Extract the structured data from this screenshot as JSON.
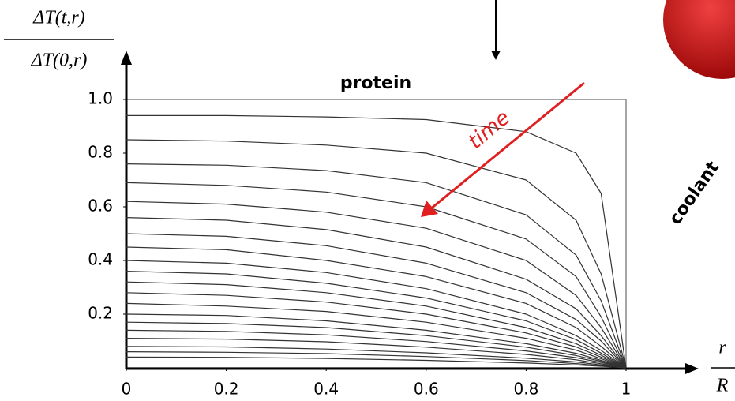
{
  "chart_data": {
    "type": "line",
    "ylabel": {
      "numerator": "ΔT(t,r)",
      "denominator": "ΔT(0,r)"
    },
    "xlabel": {
      "numerator": "r",
      "denominator": "R"
    },
    "annotations": {
      "region": "protein",
      "arrow": "time",
      "outside": "coolant"
    },
    "x": [
      0,
      0.2,
      0.4,
      0.6,
      0.8,
      0.9,
      0.95,
      1
    ],
    "series": [
      {
        "color": "#333333",
        "values": [
          0.94,
          0.94,
          0.935,
          0.925,
          0.88,
          0.8,
          0.65,
          0
        ]
      },
      {
        "color": "#333333",
        "values": [
          0.85,
          0.845,
          0.83,
          0.8,
          0.7,
          0.55,
          0.35,
          0
        ]
      },
      {
        "color": "#333333",
        "values": [
          0.76,
          0.755,
          0.735,
          0.69,
          0.57,
          0.42,
          0.25,
          0
        ]
      },
      {
        "color": "#333333",
        "values": [
          0.69,
          0.68,
          0.655,
          0.6,
          0.48,
          0.34,
          0.19,
          0
        ]
      },
      {
        "color": "#333333",
        "values": [
          0.62,
          0.61,
          0.58,
          0.52,
          0.4,
          0.27,
          0.15,
          0
        ]
      },
      {
        "color": "#333333",
        "values": [
          0.56,
          0.55,
          0.515,
          0.45,
          0.33,
          0.22,
          0.12,
          0
        ]
      },
      {
        "color": "#333333",
        "values": [
          0.5,
          0.49,
          0.455,
          0.39,
          0.28,
          0.18,
          0.1,
          0
        ]
      },
      {
        "color": "#333333",
        "values": [
          0.45,
          0.44,
          0.4,
          0.34,
          0.24,
          0.15,
          0.08,
          0
        ]
      },
      {
        "color": "#333333",
        "values": [
          0.4,
          0.39,
          0.355,
          0.295,
          0.2,
          0.12,
          0.065,
          0
        ]
      },
      {
        "color": "#333333",
        "values": [
          0.36,
          0.35,
          0.315,
          0.26,
          0.175,
          0.105,
          0.055,
          0
        ]
      },
      {
        "color": "#333333",
        "values": [
          0.32,
          0.31,
          0.28,
          0.23,
          0.15,
          0.09,
          0.047,
          0
        ]
      },
      {
        "color": "#333333",
        "values": [
          0.28,
          0.27,
          0.245,
          0.2,
          0.13,
          0.078,
          0.04,
          0
        ]
      },
      {
        "color": "#333333",
        "values": [
          0.24,
          0.23,
          0.21,
          0.17,
          0.11,
          0.066,
          0.034,
          0
        ]
      },
      {
        "color": "#333333",
        "values": [
          0.2,
          0.195,
          0.175,
          0.14,
          0.09,
          0.054,
          0.028,
          0
        ]
      },
      {
        "color": "#333333",
        "values": [
          0.17,
          0.165,
          0.15,
          0.12,
          0.077,
          0.046,
          0.024,
          0
        ]
      },
      {
        "color": "#333333",
        "values": [
          0.14,
          0.136,
          0.123,
          0.098,
          0.063,
          0.038,
          0.02,
          0
        ]
      },
      {
        "color": "#333333",
        "values": [
          0.11,
          0.107,
          0.097,
          0.077,
          0.05,
          0.03,
          0.015,
          0
        ]
      },
      {
        "color": "#333333",
        "values": [
          0.08,
          0.078,
          0.07,
          0.056,
          0.036,
          0.022,
          0.011,
          0
        ]
      },
      {
        "color": "#333333",
        "values": [
          0.06,
          0.058,
          0.053,
          0.042,
          0.027,
          0.016,
          0.008,
          0
        ]
      },
      {
        "color": "#333333",
        "values": [
          0.04,
          0.039,
          0.035,
          0.028,
          0.018,
          0.011,
          0.006,
          0
        ]
      }
    ],
    "xlim": [
      0,
      1
    ],
    "ylim": [
      0,
      1
    ],
    "xticks": [
      0,
      0.2,
      0.4,
      0.6,
      0.8,
      1
    ],
    "yticks": [
      {
        "value": 1,
        "label": "1.0"
      },
      0.8,
      0.6,
      0.4,
      0.2
    ],
    "arrow_color": "#e02020"
  }
}
